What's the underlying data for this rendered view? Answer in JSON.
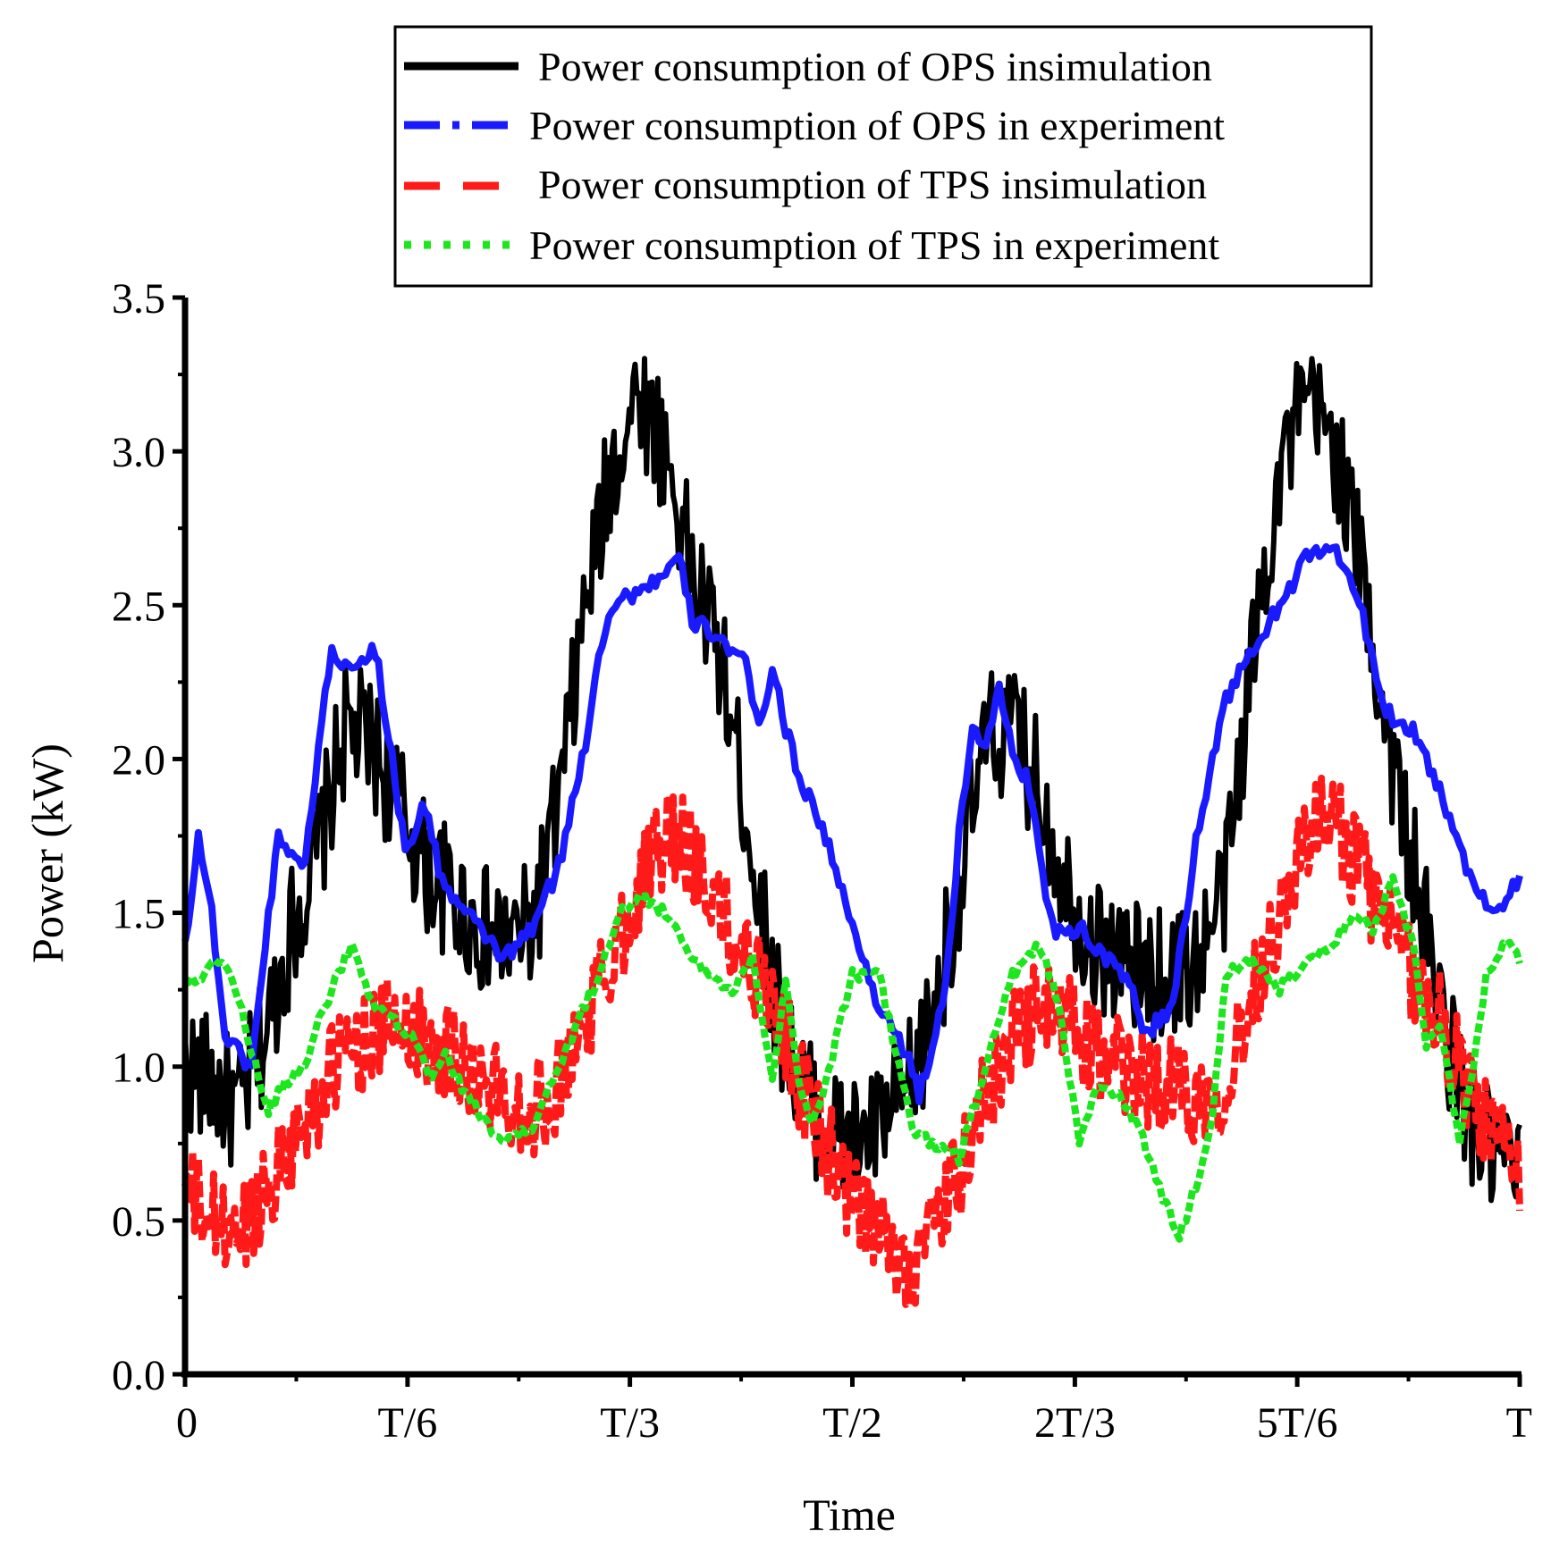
{
  "chart_data": {
    "type": "line",
    "title": "",
    "xlabel": "Time",
    "ylabel": "Power (kW)",
    "xlim": [
      0,
      1
    ],
    "ylim": [
      0,
      3.5
    ],
    "grid": false,
    "legend_position": "top-center",
    "x_ticks": [
      {
        "value": 0,
        "label": "0"
      },
      {
        "value": 0.1667,
        "label": "T/6"
      },
      {
        "value": 0.3333,
        "label": "T/3"
      },
      {
        "value": 0.5,
        "label": "T/2"
      },
      {
        "value": 0.6667,
        "label": "2T/3"
      },
      {
        "value": 0.8333,
        "label": "5T/6"
      },
      {
        "value": 1,
        "label": "T"
      }
    ],
    "y_ticks": [
      {
        "value": 0,
        "label": "0.0"
      },
      {
        "value": 0.5,
        "label": "0.5"
      },
      {
        "value": 1,
        "label": "1.0"
      },
      {
        "value": 1.5,
        "label": "1.5"
      },
      {
        "value": 2,
        "label": "2.0"
      },
      {
        "value": 2.5,
        "label": "2.5"
      },
      {
        "value": 3,
        "label": "3.0"
      },
      {
        "value": 3.5,
        "label": "3.5"
      }
    ],
    "series": [
      {
        "name": "Power consumption of OPS insimulation",
        "color": "#000000",
        "style": "solid",
        "noise": 0.22,
        "x": [
          0,
          0.02,
          0.04,
          0.06,
          0.08,
          0.1,
          0.12,
          0.14,
          0.16,
          0.18,
          0.2,
          0.22,
          0.24,
          0.26,
          0.28,
          0.3,
          0.32,
          0.34,
          0.36,
          0.38,
          0.4,
          0.42,
          0.44,
          0.46,
          0.48,
          0.5,
          0.52,
          0.54,
          0.56,
          0.58,
          0.6,
          0.62,
          0.64,
          0.66,
          0.68,
          0.7,
          0.72,
          0.74,
          0.76,
          0.78,
          0.8,
          0.82,
          0.84,
          0.86,
          0.88,
          0.9,
          0.92,
          0.94,
          0.96,
          0.98,
          1.0
        ],
        "values": [
          1.0,
          0.95,
          0.85,
          1.1,
          1.45,
          1.7,
          2.1,
          2.05,
          1.85,
          1.65,
          1.55,
          1.45,
          1.4,
          1.45,
          1.85,
          2.5,
          2.95,
          3.2,
          3.0,
          2.6,
          2.35,
          1.85,
          1.25,
          0.95,
          0.8,
          0.75,
          0.8,
          0.9,
          1.15,
          1.6,
          2.05,
          2.1,
          1.9,
          1.6,
          1.4,
          1.35,
          1.3,
          1.3,
          1.35,
          1.6,
          2.35,
          2.95,
          3.15,
          3.05,
          2.65,
          2.1,
          1.65,
          1.2,
          0.85,
          0.7,
          0.65
        ]
      },
      {
        "name": "Power consumption of OPS in experiment",
        "color": "#1a1aff",
        "style": "dashdot",
        "noise": 0.03,
        "x": [
          0,
          0.01,
          0.02,
          0.03,
          0.05,
          0.06,
          0.07,
          0.09,
          0.1,
          0.11,
          0.12,
          0.14,
          0.145,
          0.155,
          0.165,
          0.18,
          0.19,
          0.2,
          0.22,
          0.24,
          0.26,
          0.28,
          0.3,
          0.31,
          0.32,
          0.34,
          0.36,
          0.37,
          0.38,
          0.4,
          0.42,
          0.43,
          0.44,
          0.445,
          0.45,
          0.46,
          0.48,
          0.5,
          0.52,
          0.54,
          0.55,
          0.57,
          0.58,
          0.59,
          0.6,
          0.61,
          0.62,
          0.63,
          0.65,
          0.67,
          0.69,
          0.71,
          0.72,
          0.74,
          0.76,
          0.78,
          0.8,
          0.82,
          0.84,
          0.86,
          0.88,
          0.9,
          0.92,
          0.94,
          0.96,
          0.98,
          1.0
        ],
        "values": [
          1.4,
          1.75,
          1.5,
          1.1,
          1.0,
          1.4,
          1.75,
          1.65,
          2.05,
          2.35,
          2.3,
          2.35,
          2.3,
          2.0,
          1.7,
          1.85,
          1.65,
          1.55,
          1.45,
          1.35,
          1.45,
          1.65,
          2.05,
          2.35,
          2.5,
          2.55,
          2.6,
          2.65,
          2.45,
          2.4,
          2.3,
          2.1,
          2.3,
          2.2,
          2.1,
          1.95,
          1.75,
          1.45,
          1.2,
          1.05,
          0.9,
          1.25,
          1.75,
          2.1,
          2.05,
          2.25,
          2.0,
          1.95,
          1.45,
          1.45,
          1.35,
          1.25,
          1.1,
          1.2,
          1.8,
          2.2,
          2.35,
          2.5,
          2.65,
          2.7,
          2.5,
          2.15,
          2.1,
          1.9,
          1.65,
          1.5,
          1.6
        ]
      },
      {
        "name": "Power consumption of TPS insimulation",
        "color": "#ff1a1a",
        "style": "dashed",
        "noise": 0.16,
        "x": [
          0,
          0.02,
          0.04,
          0.06,
          0.08,
          0.1,
          0.12,
          0.14,
          0.16,
          0.18,
          0.2,
          0.22,
          0.24,
          0.26,
          0.28,
          0.3,
          0.32,
          0.34,
          0.36,
          0.38,
          0.4,
          0.42,
          0.44,
          0.46,
          0.48,
          0.5,
          0.52,
          0.54,
          0.56,
          0.58,
          0.6,
          0.62,
          0.64,
          0.66,
          0.68,
          0.7,
          0.72,
          0.74,
          0.76,
          0.78,
          0.8,
          0.82,
          0.84,
          0.86,
          0.88,
          0.9,
          0.92,
          0.94,
          0.96,
          0.98,
          1.0
        ],
        "values": [
          0.6,
          0.5,
          0.45,
          0.6,
          0.75,
          0.9,
          1.05,
          1.1,
          1.15,
          1.1,
          1.05,
          0.95,
          0.9,
          0.85,
          0.95,
          1.15,
          1.35,
          1.6,
          1.75,
          1.7,
          1.5,
          1.35,
          1.25,
          0.95,
          0.75,
          0.55,
          0.45,
          0.35,
          0.45,
          0.65,
          0.9,
          1.1,
          1.2,
          1.15,
          1.05,
          1.0,
          0.95,
          0.95,
          0.9,
          0.95,
          1.25,
          1.5,
          1.75,
          1.8,
          1.65,
          1.45,
          1.3,
          1.15,
          0.95,
          0.75,
          0.65
        ]
      },
      {
        "name": "Power consumption of TPS in experiment",
        "color": "#1ee61e",
        "style": "dotted",
        "noise": 0.02,
        "x": [
          0,
          0.015,
          0.025,
          0.035,
          0.05,
          0.062,
          0.075,
          0.09,
          0.1,
          0.11,
          0.125,
          0.14,
          0.155,
          0.17,
          0.185,
          0.195,
          0.205,
          0.22,
          0.24,
          0.26,
          0.275,
          0.29,
          0.31,
          0.325,
          0.34,
          0.36,
          0.375,
          0.39,
          0.41,
          0.425,
          0.435,
          0.44,
          0.45,
          0.46,
          0.47,
          0.48,
          0.5,
          0.52,
          0.53,
          0.545,
          0.56,
          0.58,
          0.6,
          0.62,
          0.64,
          0.655,
          0.67,
          0.685,
          0.7,
          0.715,
          0.73,
          0.745,
          0.76,
          0.77,
          0.78,
          0.8,
          0.82,
          0.84,
          0.86,
          0.875,
          0.89,
          0.905,
          0.92,
          0.93,
          0.94,
          0.955,
          0.965,
          0.975,
          0.99,
          1.0
        ],
        "values": [
          1.28,
          1.3,
          1.35,
          1.3,
          1.05,
          0.85,
          0.95,
          1.0,
          1.15,
          1.25,
          1.4,
          1.2,
          1.15,
          1.1,
          0.95,
          1.05,
          0.95,
          0.85,
          0.75,
          0.8,
          0.95,
          1.1,
          1.3,
          1.5,
          1.55,
          1.5,
          1.4,
          1.3,
          1.25,
          1.35,
          1.1,
          0.95,
          1.3,
          0.95,
          0.8,
          0.95,
          1.3,
          1.3,
          1.1,
          0.8,
          0.75,
          0.7,
          1.0,
          1.3,
          1.4,
          1.2,
          0.75,
          0.95,
          0.9,
          0.8,
          0.6,
          0.45,
          0.65,
          0.85,
          1.3,
          1.35,
          1.25,
          1.35,
          1.4,
          1.5,
          1.45,
          1.6,
          1.4,
          1.05,
          1.15,
          0.75,
          1.0,
          1.3,
          1.4,
          1.35
        ]
      }
    ]
  }
}
